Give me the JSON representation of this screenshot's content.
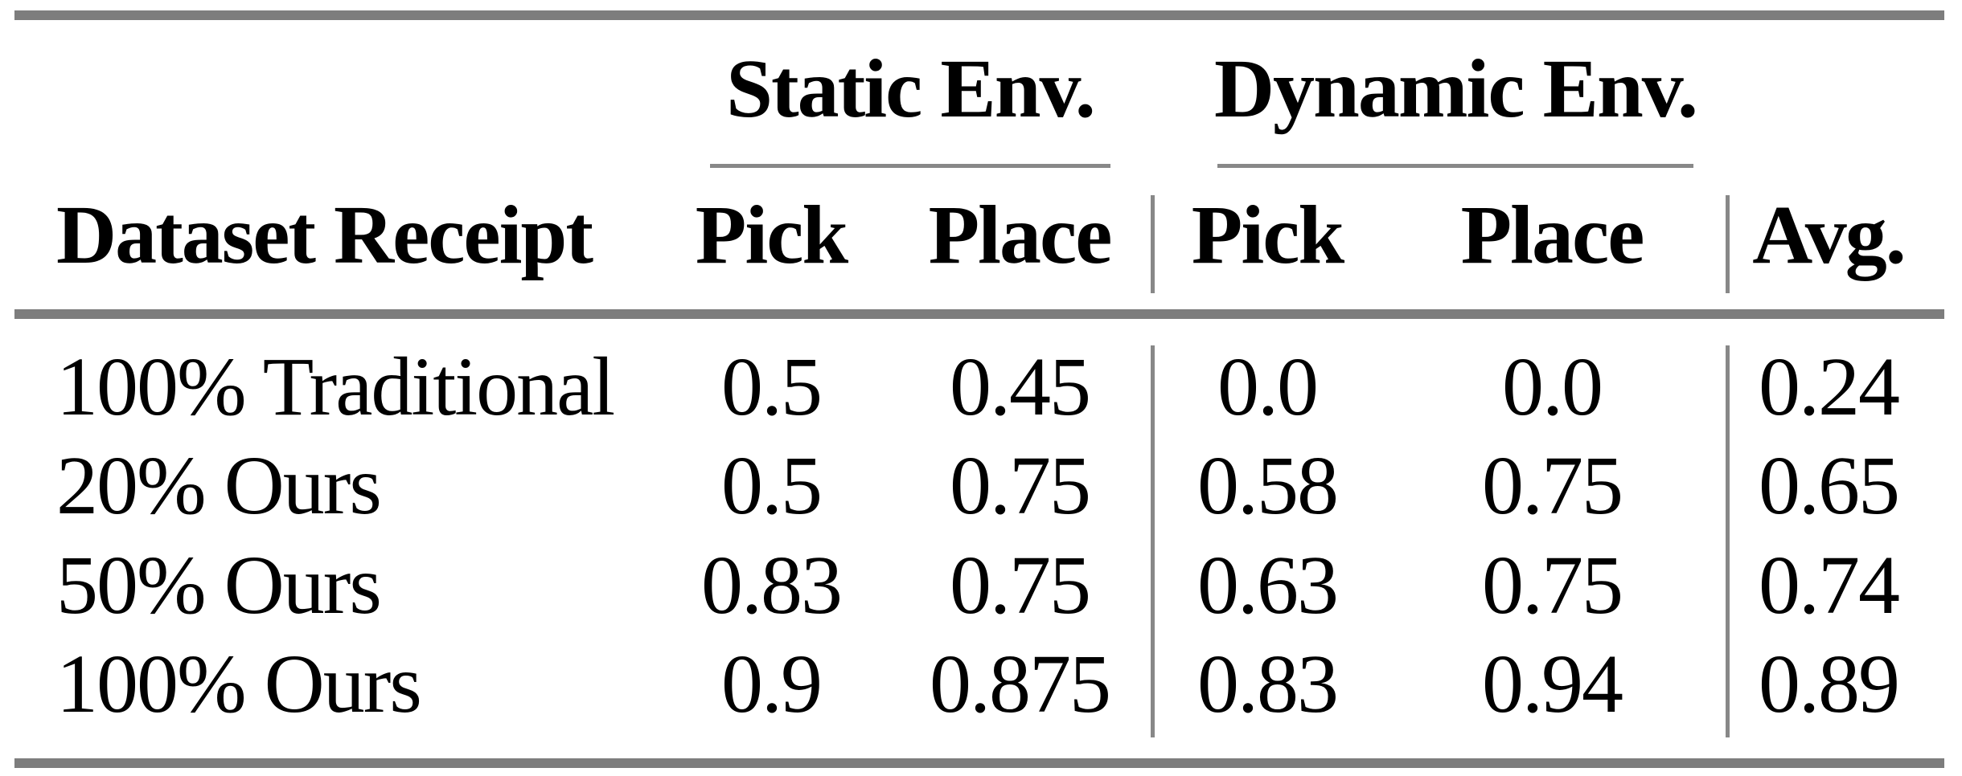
{
  "table": {
    "column_groups": [
      {
        "label": "Static Env."
      },
      {
        "label": "Dynamic Env."
      }
    ],
    "stub_header": "Dataset Receipt",
    "columns": [
      "Pick",
      "Place",
      "Pick",
      "Place",
      "Avg."
    ],
    "rows": [
      {
        "label": "100% Traditional",
        "values": [
          "0.5",
          "0.45",
          "0.0",
          "0.0",
          "0.24"
        ]
      },
      {
        "label": "20% Ours",
        "values": [
          "0.5",
          "0.75",
          "0.58",
          "0.75",
          "0.65"
        ]
      },
      {
        "label": "50% Ours",
        "values": [
          "0.83",
          "0.75",
          "0.63",
          "0.75",
          "0.74"
        ]
      },
      {
        "label": "100% Ours",
        "values": [
          "0.9",
          "0.875",
          "0.83",
          "0.94",
          "0.89"
        ]
      }
    ],
    "colors": {
      "background": "#ffffff",
      "text": "#000000",
      "rule_thick": "#7d7d7d",
      "rule_thin": "#888888"
    }
  },
  "chart_data": {
    "type": "table",
    "columns": [
      "Dataset Receipt",
      "Static Env. Pick",
      "Static Env. Place",
      "Dynamic Env. Pick",
      "Dynamic Env. Place",
      "Avg."
    ],
    "rows": [
      [
        "100% Traditional",
        0.5,
        0.45,
        0.0,
        0.0,
        0.24
      ],
      [
        "20% Ours",
        0.5,
        0.75,
        0.58,
        0.75,
        0.65
      ],
      [
        "50% Ours",
        0.83,
        0.75,
        0.63,
        0.75,
        0.74
      ],
      [
        "100% Ours",
        0.9,
        0.875,
        0.83,
        0.94,
        0.89
      ]
    ]
  }
}
